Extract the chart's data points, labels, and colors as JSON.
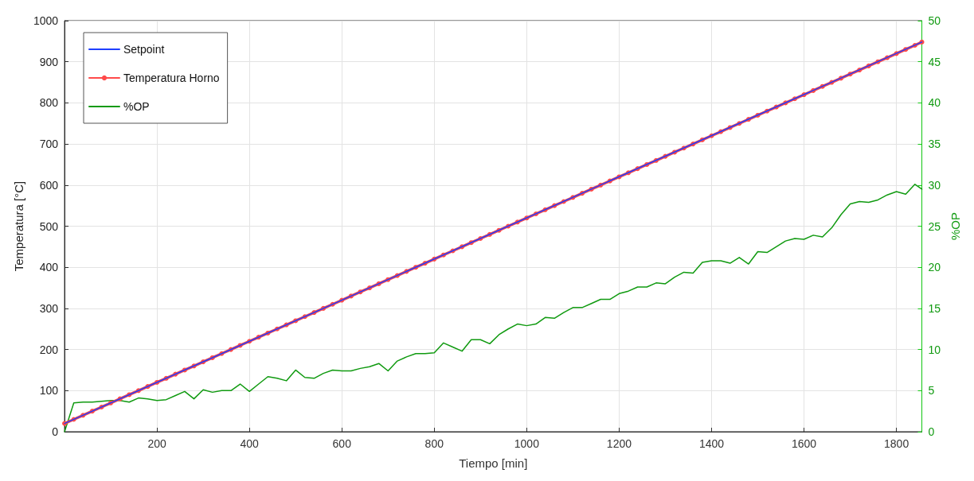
{
  "chart_data": {
    "type": "line",
    "xlabel": "Tiempo [min]",
    "ylabel": "Temperatura [°C]",
    "y2label": "%OP",
    "x": [
      0,
      20,
      40,
      60,
      80,
      100,
      120,
      140,
      160,
      180,
      200,
      220,
      240,
      260,
      280,
      300,
      320,
      340,
      360,
      380,
      400,
      420,
      440,
      460,
      480,
      500,
      520,
      540,
      560,
      580,
      600,
      620,
      640,
      660,
      680,
      700,
      720,
      740,
      760,
      780,
      800,
      820,
      840,
      860,
      880,
      900,
      920,
      940,
      960,
      980,
      1000,
      1020,
      1040,
      1060,
      1080,
      1100,
      1120,
      1140,
      1160,
      1180,
      1200,
      1220,
      1240,
      1260,
      1280,
      1300,
      1320,
      1340,
      1360,
      1380,
      1400,
      1420,
      1440,
      1460,
      1480,
      1500,
      1520,
      1540,
      1560,
      1580,
      1600,
      1620,
      1640,
      1660,
      1680,
      1700,
      1720,
      1740,
      1760,
      1780,
      1800,
      1820,
      1840,
      1855
    ],
    "series": [
      {
        "name": "Setpoint",
        "color": "#1f3fff",
        "marker": "none",
        "x": [
          0,
          1855
        ],
        "values": [
          20,
          948
        ]
      },
      {
        "name": "Temperatura Horno",
        "color": "#ff4a4a",
        "marker": "circle",
        "values": [
          20,
          30,
          40,
          50,
          60,
          70,
          80,
          90,
          100,
          110,
          120,
          130,
          140,
          150,
          160,
          170,
          180,
          190,
          200,
          210,
          220,
          230,
          240,
          250,
          260,
          270,
          280,
          290,
          300,
          310,
          320,
          330,
          340,
          350,
          360,
          370,
          380,
          390,
          400,
          410,
          420,
          430,
          440,
          450,
          460,
          470,
          480,
          490,
          500,
          510,
          520,
          530,
          540,
          550,
          560,
          570,
          580,
          590,
          600,
          610,
          620,
          630,
          640,
          650,
          660,
          670,
          680,
          690,
          700,
          710,
          720,
          730,
          740,
          750,
          760,
          770,
          780,
          790,
          800,
          810,
          820,
          830,
          840,
          850,
          860,
          870,
          880,
          890,
          900,
          910,
          920,
          930,
          940,
          948
        ]
      },
      {
        "name": "%OP",
        "color": "#109a10",
        "marker": "none",
        "axis": "y2",
        "values": [
          0,
          3.5,
          3.6,
          3.6,
          3.7,
          3.8,
          3.8,
          3.6,
          4.1,
          4.0,
          3.8,
          3.9,
          4.4,
          4.9,
          4.0,
          5.1,
          4.8,
          5.0,
          5.0,
          5.8,
          4.9,
          5.8,
          6.7,
          6.5,
          6.2,
          7.5,
          6.6,
          6.5,
          7.1,
          7.5,
          7.4,
          7.4,
          7.7,
          7.9,
          8.3,
          7.4,
          8.6,
          9.1,
          9.5,
          9.5,
          9.6,
          10.8,
          10.3,
          9.8,
          11.2,
          11.2,
          10.7,
          11.8,
          12.5,
          13.1,
          12.9,
          13.1,
          13.9,
          13.8,
          14.5,
          15.1,
          15.1,
          15.6,
          16.1,
          16.1,
          16.8,
          17.1,
          17.6,
          17.6,
          18.1,
          18.0,
          18.8,
          19.4,
          19.3,
          20.6,
          20.8,
          20.8,
          20.5,
          21.2,
          20.4,
          21.9,
          21.8,
          22.5,
          23.2,
          23.5,
          23.4,
          23.9,
          23.7,
          24.8,
          26.4,
          27.7,
          28.0,
          27.9,
          28.2,
          28.8,
          29.2,
          28.9,
          30.1,
          29.5
        ]
      }
    ],
    "xlim": [
      0,
      1855
    ],
    "xticks": [
      200,
      400,
      600,
      800,
      1000,
      1200,
      1400,
      1600,
      1800
    ],
    "ylim": [
      0,
      1000
    ],
    "yticks": [
      0,
      100,
      200,
      300,
      400,
      500,
      600,
      700,
      800,
      900,
      1000
    ],
    "y2lim": [
      0,
      50
    ],
    "y2ticks": [
      0,
      5,
      10,
      15,
      20,
      25,
      30,
      35,
      40,
      45,
      50
    ],
    "grid": true,
    "legend": "top left"
  }
}
